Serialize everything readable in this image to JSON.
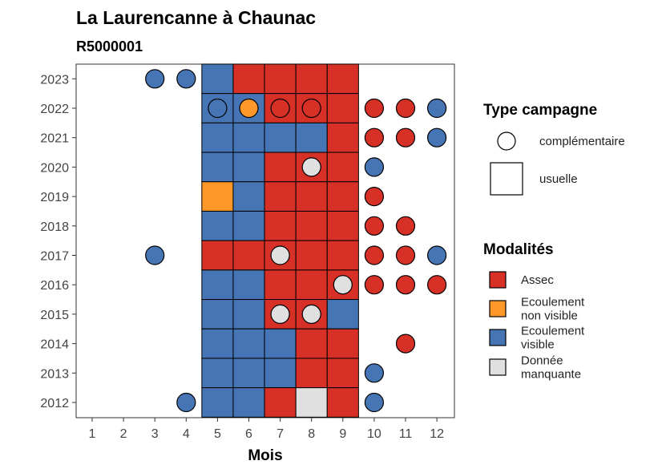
{
  "chart_data": {
    "type": "heatmap",
    "title": "La Laurencanne à Chaunac",
    "subtitle": "R5000001",
    "xlabel": "Mois",
    "ylabel": "",
    "x_ticks": [
      "1",
      "2",
      "3",
      "4",
      "5",
      "6",
      "7",
      "8",
      "9",
      "10",
      "11",
      "12"
    ],
    "y_ticks": [
      "2012",
      "2013",
      "2014",
      "2015",
      "2016",
      "2017",
      "2018",
      "2019",
      "2020",
      "2021",
      "2022",
      "2023"
    ],
    "grid": false,
    "legend_placement": "right",
    "colors": {
      "Assec": "#D73027",
      "Ecoulement non visible": "#FE9929",
      "Ecoulement visible": "#4575B4",
      "Donnée manquante": "#E0E0E0"
    },
    "legend_type": {
      "title": "Type campagne",
      "items": [
        {
          "key": "complementaire",
          "label": "complémentaire",
          "shape": "circle"
        },
        {
          "key": "usuelle",
          "label": "usuelle",
          "shape": "square"
        }
      ]
    },
    "legend_modalites": {
      "title": "Modalités",
      "items": [
        {
          "key": "Assec",
          "lines": [
            "Assec"
          ]
        },
        {
          "key": "Ecoulement non visible",
          "lines": [
            "Ecoulement",
            "non visible"
          ]
        },
        {
          "key": "Ecoulement visible",
          "lines": [
            "Ecoulement",
            "visible"
          ]
        },
        {
          "key": "Donnée manquante",
          "lines": [
            "Donnée",
            "manquante"
          ]
        }
      ]
    },
    "usuelle": [
      {
        "year": 2023,
        "month": 5,
        "modalite": "Ecoulement visible"
      },
      {
        "year": 2023,
        "month": 6,
        "modalite": "Assec"
      },
      {
        "year": 2023,
        "month": 7,
        "modalite": "Assec"
      },
      {
        "year": 2023,
        "month": 8,
        "modalite": "Assec"
      },
      {
        "year": 2023,
        "month": 9,
        "modalite": "Assec"
      },
      {
        "year": 2022,
        "month": 5,
        "modalite": "Ecoulement visible"
      },
      {
        "year": 2022,
        "month": 6,
        "modalite": "Ecoulement visible"
      },
      {
        "year": 2022,
        "month": 7,
        "modalite": "Assec"
      },
      {
        "year": 2022,
        "month": 8,
        "modalite": "Assec"
      },
      {
        "year": 2022,
        "month": 9,
        "modalite": "Assec"
      },
      {
        "year": 2021,
        "month": 5,
        "modalite": "Ecoulement visible"
      },
      {
        "year": 2021,
        "month": 6,
        "modalite": "Ecoulement visible"
      },
      {
        "year": 2021,
        "month": 7,
        "modalite": "Ecoulement visible"
      },
      {
        "year": 2021,
        "month": 8,
        "modalite": "Ecoulement visible"
      },
      {
        "year": 2021,
        "month": 9,
        "modalite": "Assec"
      },
      {
        "year": 2020,
        "month": 5,
        "modalite": "Ecoulement visible"
      },
      {
        "year": 2020,
        "month": 6,
        "modalite": "Ecoulement visible"
      },
      {
        "year": 2020,
        "month": 7,
        "modalite": "Assec"
      },
      {
        "year": 2020,
        "month": 8,
        "modalite": "Assec"
      },
      {
        "year": 2020,
        "month": 9,
        "modalite": "Assec"
      },
      {
        "year": 2019,
        "month": 5,
        "modalite": "Ecoulement non visible"
      },
      {
        "year": 2019,
        "month": 6,
        "modalite": "Ecoulement visible"
      },
      {
        "year": 2019,
        "month": 7,
        "modalite": "Assec"
      },
      {
        "year": 2019,
        "month": 8,
        "modalite": "Assec"
      },
      {
        "year": 2019,
        "month": 9,
        "modalite": "Assec"
      },
      {
        "year": 2018,
        "month": 5,
        "modalite": "Ecoulement visible"
      },
      {
        "year": 2018,
        "month": 6,
        "modalite": "Ecoulement visible"
      },
      {
        "year": 2018,
        "month": 7,
        "modalite": "Assec"
      },
      {
        "year": 2018,
        "month": 8,
        "modalite": "Assec"
      },
      {
        "year": 2018,
        "month": 9,
        "modalite": "Assec"
      },
      {
        "year": 2017,
        "month": 5,
        "modalite": "Assec"
      },
      {
        "year": 2017,
        "month": 6,
        "modalite": "Assec"
      },
      {
        "year": 2017,
        "month": 7,
        "modalite": "Assec"
      },
      {
        "year": 2017,
        "month": 8,
        "modalite": "Assec"
      },
      {
        "year": 2017,
        "month": 9,
        "modalite": "Assec"
      },
      {
        "year": 2016,
        "month": 5,
        "modalite": "Ecoulement visible"
      },
      {
        "year": 2016,
        "month": 6,
        "modalite": "Ecoulement visible"
      },
      {
        "year": 2016,
        "month": 7,
        "modalite": "Assec"
      },
      {
        "year": 2016,
        "month": 8,
        "modalite": "Assec"
      },
      {
        "year": 2016,
        "month": 9,
        "modalite": "Assec"
      },
      {
        "year": 2015,
        "month": 5,
        "modalite": "Ecoulement visible"
      },
      {
        "year": 2015,
        "month": 6,
        "modalite": "Ecoulement visible"
      },
      {
        "year": 2015,
        "month": 7,
        "modalite": "Assec"
      },
      {
        "year": 2015,
        "month": 8,
        "modalite": "Assec"
      },
      {
        "year": 2015,
        "month": 9,
        "modalite": "Ecoulement visible"
      },
      {
        "year": 2014,
        "month": 5,
        "modalite": "Ecoulement visible"
      },
      {
        "year": 2014,
        "month": 6,
        "modalite": "Ecoulement visible"
      },
      {
        "year": 2014,
        "month": 7,
        "modalite": "Ecoulement visible"
      },
      {
        "year": 2014,
        "month": 8,
        "modalite": "Assec"
      },
      {
        "year": 2014,
        "month": 9,
        "modalite": "Assec"
      },
      {
        "year": 2013,
        "month": 5,
        "modalite": "Ecoulement visible"
      },
      {
        "year": 2013,
        "month": 6,
        "modalite": "Ecoulement visible"
      },
      {
        "year": 2013,
        "month": 7,
        "modalite": "Ecoulement visible"
      },
      {
        "year": 2013,
        "month": 8,
        "modalite": "Assec"
      },
      {
        "year": 2013,
        "month": 9,
        "modalite": "Assec"
      },
      {
        "year": 2012,
        "month": 5,
        "modalite": "Ecoulement visible"
      },
      {
        "year": 2012,
        "month": 6,
        "modalite": "Ecoulement visible"
      },
      {
        "year": 2012,
        "month": 7,
        "modalite": "Assec"
      },
      {
        "year": 2012,
        "month": 8,
        "modalite": "Donnée manquante"
      },
      {
        "year": 2012,
        "month": 9,
        "modalite": "Assec"
      }
    ],
    "complementaire": [
      {
        "year": 2023,
        "month": 3,
        "modalite": "Ecoulement visible"
      },
      {
        "year": 2023,
        "month": 4,
        "modalite": "Ecoulement visible"
      },
      {
        "year": 2022,
        "month": 5,
        "modalite": "Ecoulement visible"
      },
      {
        "year": 2022,
        "month": 6,
        "modalite": "Ecoulement non visible"
      },
      {
        "year": 2022,
        "month": 7,
        "modalite": "Assec"
      },
      {
        "year": 2022,
        "month": 8,
        "modalite": "Assec"
      },
      {
        "year": 2022,
        "month": 10,
        "modalite": "Assec"
      },
      {
        "year": 2022,
        "month": 11,
        "modalite": "Assec"
      },
      {
        "year": 2022,
        "month": 12,
        "modalite": "Ecoulement visible"
      },
      {
        "year": 2021,
        "month": 10,
        "modalite": "Assec"
      },
      {
        "year": 2021,
        "month": 11,
        "modalite": "Assec"
      },
      {
        "year": 2021,
        "month": 12,
        "modalite": "Ecoulement visible"
      },
      {
        "year": 2020,
        "month": 8,
        "modalite": "Donnée manquante"
      },
      {
        "year": 2020,
        "month": 10,
        "modalite": "Ecoulement visible"
      },
      {
        "year": 2019,
        "month": 10,
        "modalite": "Assec"
      },
      {
        "year": 2018,
        "month": 10,
        "modalite": "Assec"
      },
      {
        "year": 2018,
        "month": 11,
        "modalite": "Assec"
      },
      {
        "year": 2017,
        "month": 3,
        "modalite": "Ecoulement visible"
      },
      {
        "year": 2017,
        "month": 7,
        "modalite": "Donnée manquante"
      },
      {
        "year": 2017,
        "month": 10,
        "modalite": "Assec"
      },
      {
        "year": 2017,
        "month": 11,
        "modalite": "Assec"
      },
      {
        "year": 2017,
        "month": 12,
        "modalite": "Ecoulement visible"
      },
      {
        "year": 2016,
        "month": 9,
        "modalite": "Donnée manquante"
      },
      {
        "year": 2016,
        "month": 10,
        "modalite": "Assec"
      },
      {
        "year": 2016,
        "month": 11,
        "modalite": "Assec"
      },
      {
        "year": 2016,
        "month": 12,
        "modalite": "Assec"
      },
      {
        "year": 2015,
        "month": 7,
        "modalite": "Donnée manquante"
      },
      {
        "year": 2015,
        "month": 8,
        "modalite": "Donnée manquante"
      },
      {
        "year": 2014,
        "month": 11,
        "modalite": "Assec"
      },
      {
        "year": 2013,
        "month": 10,
        "modalite": "Ecoulement visible"
      },
      {
        "year": 2012,
        "month": 4,
        "modalite": "Ecoulement visible"
      },
      {
        "year": 2012,
        "month": 10,
        "modalite": "Ecoulement visible"
      }
    ]
  }
}
